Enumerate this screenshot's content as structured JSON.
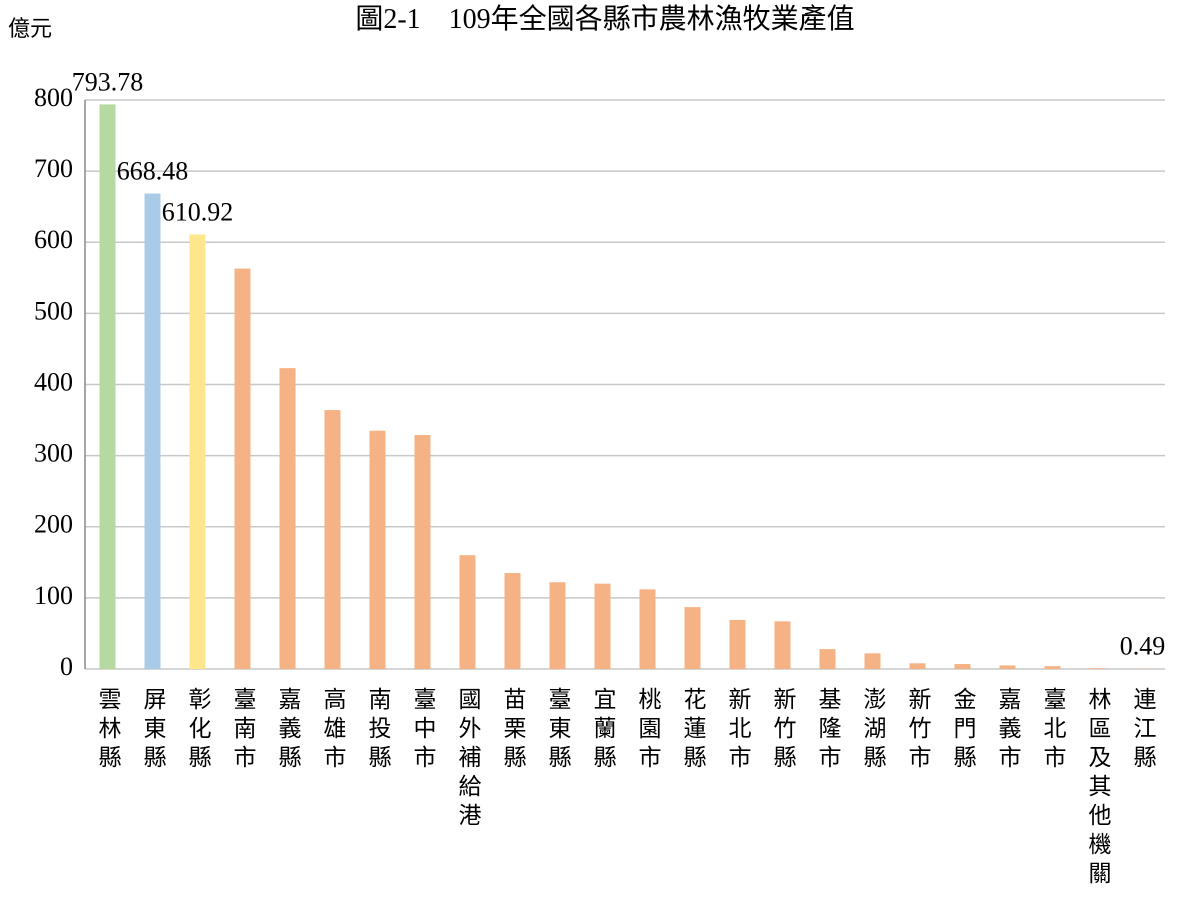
{
  "chart_data": {
    "type": "bar",
    "title": "圖2-1　109年全國各縣市農林漁牧業產值",
    "y_label": "億元",
    "categories": [
      "雲林縣",
      "屏東縣",
      "彰化縣",
      "臺南市",
      "嘉義縣",
      "高雄市",
      "南投縣",
      "臺中市",
      "國外補給港",
      "苗栗縣",
      "臺東縣",
      "宜蘭縣",
      "桃園市",
      "花蓮縣",
      "新北市",
      "新竹縣",
      "基隆市",
      "澎湖縣",
      "新竹市",
      "金門縣",
      "嘉義市",
      "臺北市",
      "林區及其他機關",
      "連江縣"
    ],
    "values": [
      793.78,
      668.48,
      610.92,
      563,
      423,
      364,
      335,
      329,
      160,
      135,
      122,
      120,
      112,
      87,
      69,
      67,
      28,
      22,
      8,
      7,
      5,
      4,
      1,
      0.49
    ],
    "value_labels": [
      "793.78",
      "668.48",
      "610.92",
      null,
      null,
      null,
      null,
      null,
      null,
      null,
      null,
      null,
      null,
      null,
      null,
      null,
      null,
      null,
      null,
      null,
      null,
      null,
      null,
      "0.49"
    ],
    "colors": [
      "#b5d9a0",
      "#a9cbe8",
      "#fde68c",
      "#f5b284",
      "#f5b284",
      "#f5b284",
      "#f5b284",
      "#f5b284",
      "#f5b284",
      "#f5b284",
      "#f5b284",
      "#f5b284",
      "#f5b284",
      "#f5b284",
      "#f5b284",
      "#f5b284",
      "#f5b284",
      "#f5b284",
      "#f5b284",
      "#f5b284",
      "#f5b284",
      "#f5b284",
      "#f5b284",
      "#f5b284"
    ],
    "ylim": [
      0,
      800
    ],
    "yticks": [
      0,
      100,
      200,
      300,
      400,
      500,
      600,
      700,
      800
    ],
    "grid": true
  }
}
